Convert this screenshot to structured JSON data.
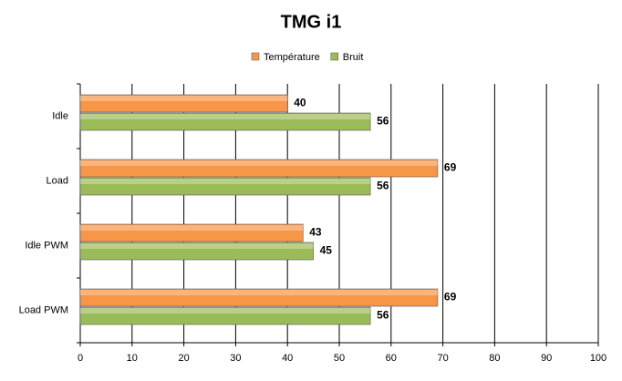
{
  "chart_data": {
    "type": "hbar",
    "title": "TMG i1",
    "categories": [
      "Idle",
      "Load",
      "Idle PWM",
      "Load PWM"
    ],
    "series": [
      {
        "name": "Température",
        "color": "#f79646",
        "values": [
          40,
          69,
          43,
          69
        ]
      },
      {
        "name": "Bruit",
        "color": "#9bbb59",
        "values": [
          56,
          56,
          45,
          56
        ]
      }
    ],
    "xlim": [
      0,
      100
    ],
    "xticks": [
      0,
      10,
      20,
      30,
      40,
      50,
      60,
      70,
      80,
      90,
      100
    ],
    "grid": true,
    "legend": "top"
  }
}
